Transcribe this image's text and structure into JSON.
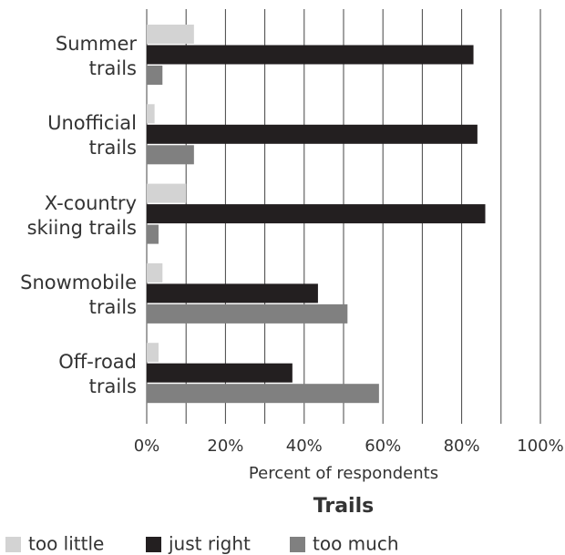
{
  "chart_data": {
    "type": "hbar",
    "title": "Trails",
    "x_label": "Percent of respondents",
    "categories": [
      "Summer\ntrails",
      "Unofficial\ntrails",
      "X-country\nskiing trails",
      "Snowmobile\ntrails",
      "Off-road\ntrails"
    ],
    "series": [
      {
        "name": "too little",
        "color": "#d3d3d3",
        "values": [
          12,
          2,
          10,
          4,
          3
        ]
      },
      {
        "name": "just right",
        "color": "#231f20",
        "values": [
          83,
          84,
          86,
          43.5,
          37
        ]
      },
      {
        "name": "too much",
        "color": "#808080",
        "values": [
          4,
          12,
          3,
          51,
          59
        ]
      }
    ],
    "xlim": [
      0,
      100
    ],
    "xticks": [
      {
        "value": 0,
        "label": "0%"
      },
      {
        "value": 20,
        "label": "20%"
      },
      {
        "value": 40,
        "label": "40%"
      },
      {
        "value": 60,
        "label": "60%"
      },
      {
        "value": 80,
        "label": "80%"
      },
      {
        "value": 100,
        "label": "100%"
      }
    ],
    "minor_xticks": [
      10,
      30,
      50,
      70,
      90
    ],
    "grid": true,
    "legend": "bottom"
  }
}
